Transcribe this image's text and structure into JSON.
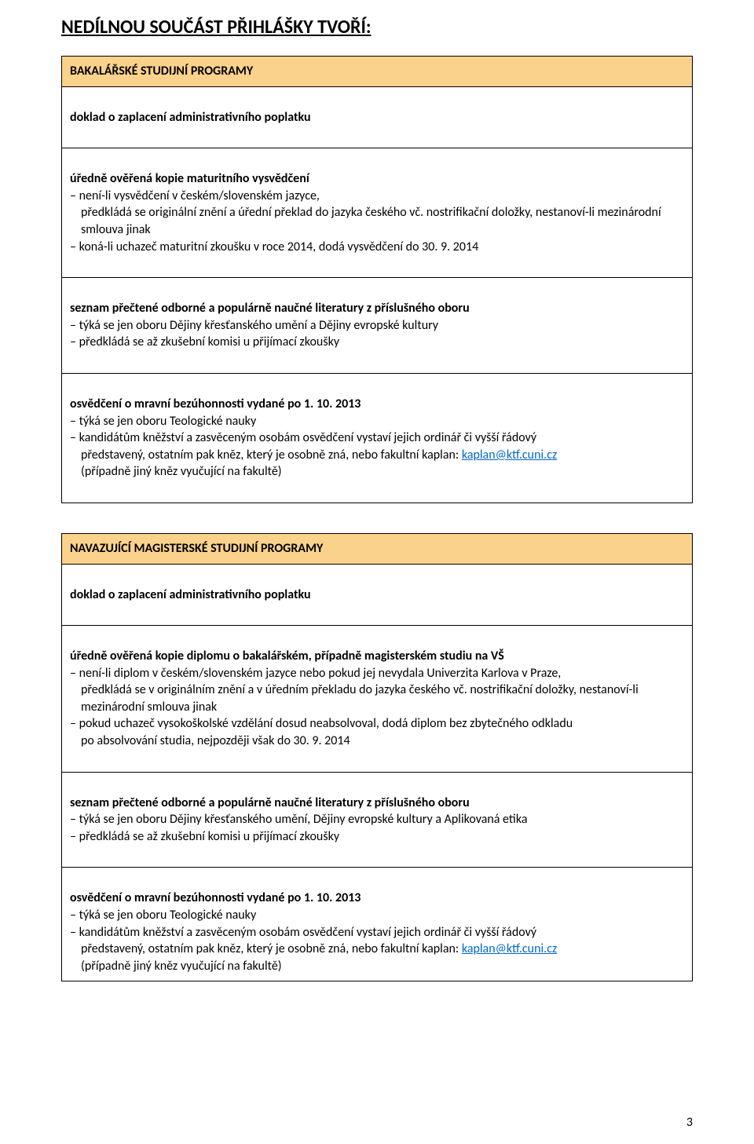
{
  "colors": {
    "header_bg": "#fbd28b",
    "border": "#000000",
    "link": "#0066cc",
    "text": "#000000",
    "page_bg": "#ffffff"
  },
  "title": "NEDÍLNOU SOUČÁST PŘIHLÁŠKY TVOŘÍ:",
  "section1": {
    "header": "BAKALÁŘSKÉ STUDIJNÍ PROGRAMY",
    "row1": {
      "bold": "doklad o zaplacení administrativního poplatku"
    },
    "row2": {
      "bold": "úředně ověřená kopie maturitního vysvědčení",
      "l1": "– není-li vysvědčení v českém/slovenském jazyce,",
      "l1b": "předkládá se originální znění a úřední překlad do jazyka českého vč. nostrifikační doložky, nestanoví-li mezinárodní smlouva jinak",
      "l2": "– koná-li uchazeč maturitní zkoušku v roce 2014, dodá vysvědčení do 30. 9. 2014"
    },
    "row3": {
      "bold": "seznam přečtené odborné a populárně naučné literatury z příslušného oboru",
      "l1": "– týká se jen oboru Dějiny křesťanského umění a Dějiny evropské kultury",
      "l2": "– předkládá se až zkušební komisi u přijímací zkoušky"
    },
    "row4": {
      "bold": "osvědčení o mravní bezúhonnosti vydané po 1. 10. 2013",
      "l1": "– týká se jen oboru Teologické nauky",
      "l2": "– kandidátům kněžství a zasvěceným osobám osvědčení vystaví jejich ordinář či vyšší řádový",
      "l2b": "představený, ostatním pak kněz, který je osobně zná, nebo fakultní kaplan: ",
      "email": "kaplan@ktf.cuni.cz",
      "l3": "(případně jiný kněz vyučující na fakultě)"
    }
  },
  "section2": {
    "header": "NAVAZUJÍCÍ MAGISTERSKÉ STUDIJNÍ PROGRAMY",
    "row1": {
      "bold": "doklad o zaplacení administrativního poplatku"
    },
    "row2": {
      "bold": "úředně ověřená kopie diplomu o bakalářském, případně magisterském studiu na VŠ",
      "l1": "– není-li diplom v českém/slovenském jazyce nebo pokud jej nevydala Univerzita Karlova v Praze,",
      "l1b": "předkládá se v originálním znění a v úředním překladu do jazyka českého vč. nostrifikační doložky, nestanoví-li mezinárodní smlouva jinak",
      "l2": "– pokud uchazeč vysokoškolské vzdělání dosud neabsolvoval, dodá diplom bez zbytečného odkladu",
      "l2b": "po absolvování studia, nejpozději však do 30. 9. 2014"
    },
    "row3": {
      "bold": "seznam přečtené odborné a populárně naučné literatury z příslušného oboru",
      "l1": "– týká se jen oboru Dějiny křesťanského umění, Dějiny evropské kultury a Aplikovaná etika",
      "l2": "– předkládá se až zkušební komisi u přijímací zkoušky"
    },
    "row4": {
      "bold": "osvědčení o mravní bezúhonnosti vydané po 1. 10. 2013",
      "l1": "– týká se jen oboru Teologické nauky",
      "l2": "– kandidátům kněžství a zasvěceným osobám osvědčení vystaví jejich ordinář či vyšší řádový",
      "l2b": "představený, ostatním pak kněz, který je osobně zná, nebo fakultní kaplan: ",
      "email": "kaplan@ktf.cuni.cz",
      "l3": "(případně jiný kněz vyučující na fakultě)"
    }
  },
  "page_number": "3"
}
